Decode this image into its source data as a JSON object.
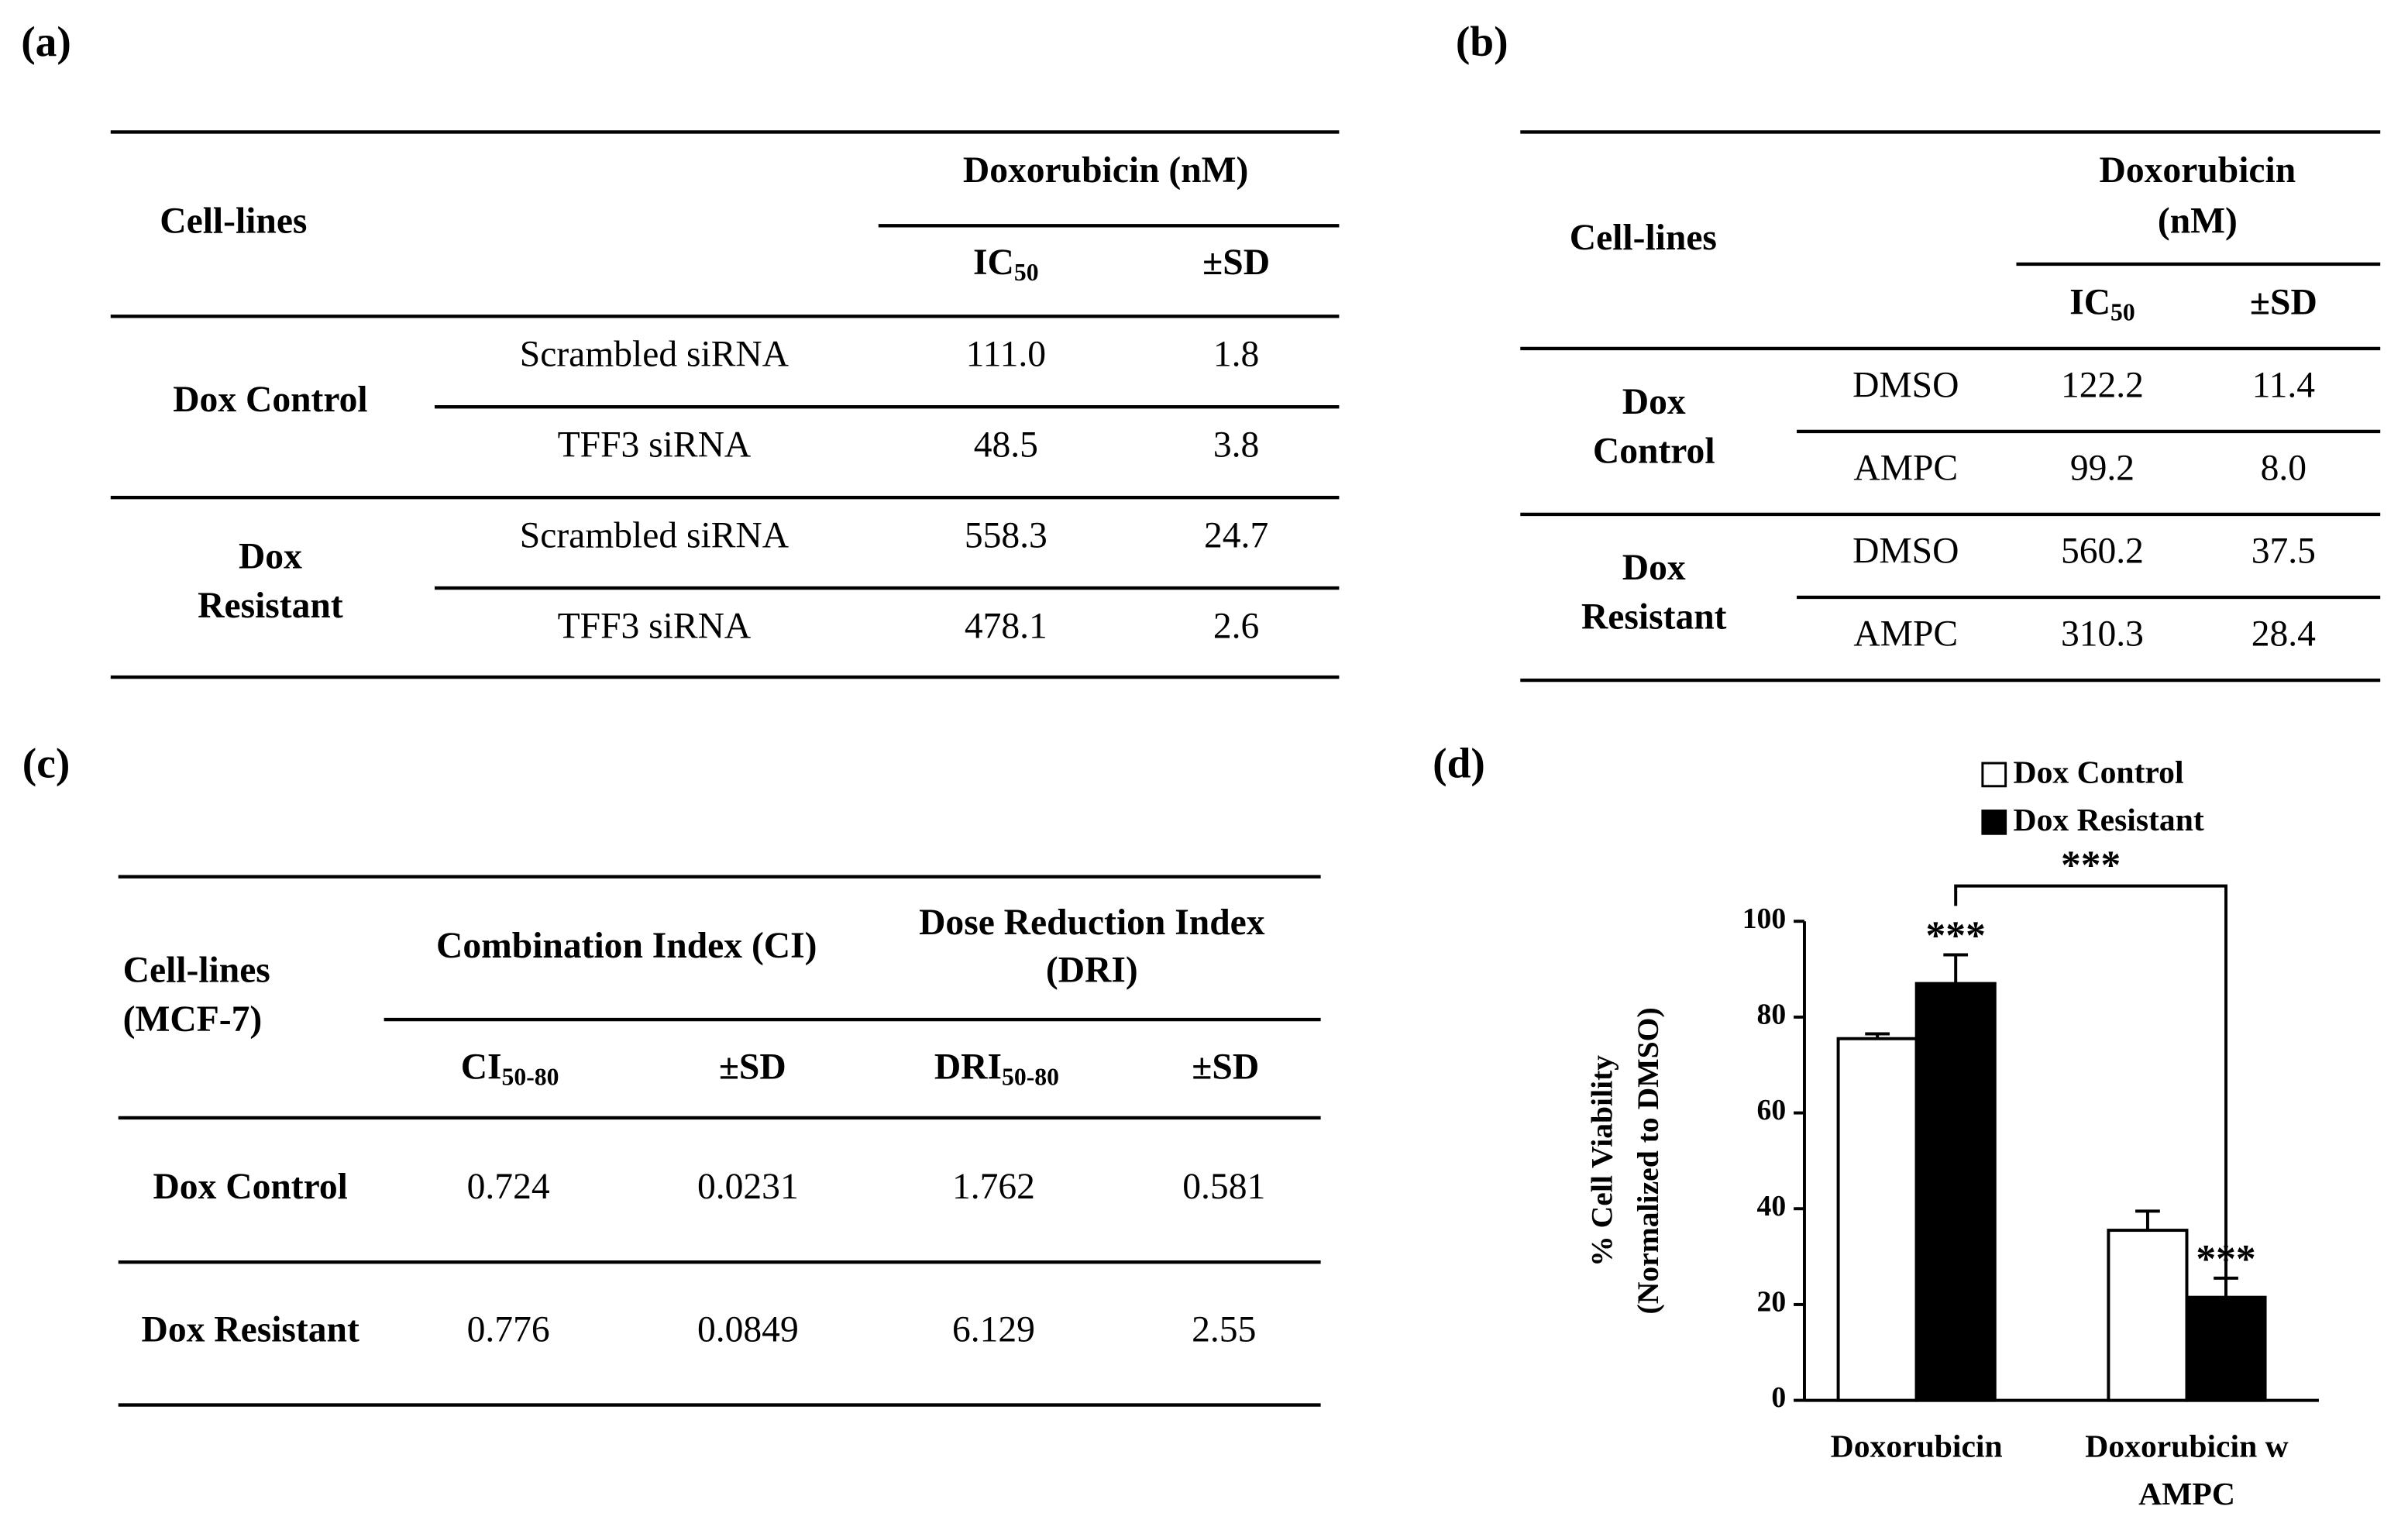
{
  "panel_labels": [
    "(a)",
    "(b)",
    "(c)",
    "(d)"
  ],
  "table_a": {
    "header": {
      "cell_lines": "Cell-lines",
      "drug": "Doxorubicin (nM)",
      "ic": {
        "main": "IC",
        "sub": "50"
      },
      "sd": "±SD"
    },
    "groups": [
      {
        "name": [
          "Dox Control"
        ],
        "rows": [
          [
            "Scrambled siRNA",
            "111.0",
            "1.8"
          ],
          [
            "TFF3 siRNA",
            "48.5",
            "3.8"
          ]
        ]
      },
      {
        "name": [
          "Dox",
          "Resistant"
        ],
        "rows": [
          [
            "Scrambled siRNA",
            "558.3",
            "24.7"
          ],
          [
            "TFF3 siRNA",
            "478.1",
            "2.6"
          ]
        ]
      }
    ]
  },
  "table_b": {
    "header": {
      "cell_lines": "Cell-lines",
      "drug": [
        "Doxorubicin",
        "(nM)"
      ],
      "ic": {
        "main": "IC",
        "sub": "50"
      },
      "sd": "±SD"
    },
    "groups": [
      {
        "name": [
          "Dox",
          "Control"
        ],
        "rows": [
          [
            "DMSO",
            "122.2",
            "11.4"
          ],
          [
            "AMPC",
            "99.2",
            "8.0"
          ]
        ]
      },
      {
        "name": [
          "Dox",
          "Resistant"
        ],
        "rows": [
          [
            "DMSO",
            "560.2",
            "37.5"
          ],
          [
            "AMPC",
            "310.3",
            "28.4"
          ]
        ]
      }
    ]
  },
  "table_c": {
    "header": {
      "cell_lines": [
        "Cell-lines",
        "(MCF-7)"
      ],
      "ci": "Combination Index (CI)",
      "dri": [
        "Dose Reduction Index",
        "(DRI)"
      ],
      "sub": [
        {
          "main": "CI",
          "sub": "50-80"
        },
        "±SD",
        {
          "main": "DRI",
          "sub": "50-80"
        },
        "±SD"
      ]
    },
    "rows": [
      [
        "Dox Control",
        "0.724",
        "0.0231",
        "1.762",
        "0.581"
      ],
      [
        "Dox Resistant",
        "0.776",
        "0.0849",
        "6.129",
        "2.55"
      ]
    ]
  },
  "chart_data": {
    "type": "bar",
    "y_label": [
      "% Cell Viability",
      "(Normalized to DMSO)"
    ],
    "categories": [
      [
        "Doxorubicin"
      ],
      [
        "Doxorubicin w",
        "AMPC"
      ]
    ],
    "series": [
      {
        "name": "Dox Control",
        "color": "#ffffff",
        "values": [
          75.5,
          35.5
        ],
        "errors": [
          1,
          4
        ]
      },
      {
        "name": "Dox Resistant",
        "color": "#000000",
        "values": [
          87,
          21.5
        ],
        "errors": [
          6,
          4
        ],
        "significance": [
          "***",
          "***"
        ]
      }
    ],
    "bracket_label": "***",
    "ylim": [
      0,
      100
    ],
    "yticks": [
      0,
      20,
      40,
      60,
      80,
      100
    ]
  }
}
